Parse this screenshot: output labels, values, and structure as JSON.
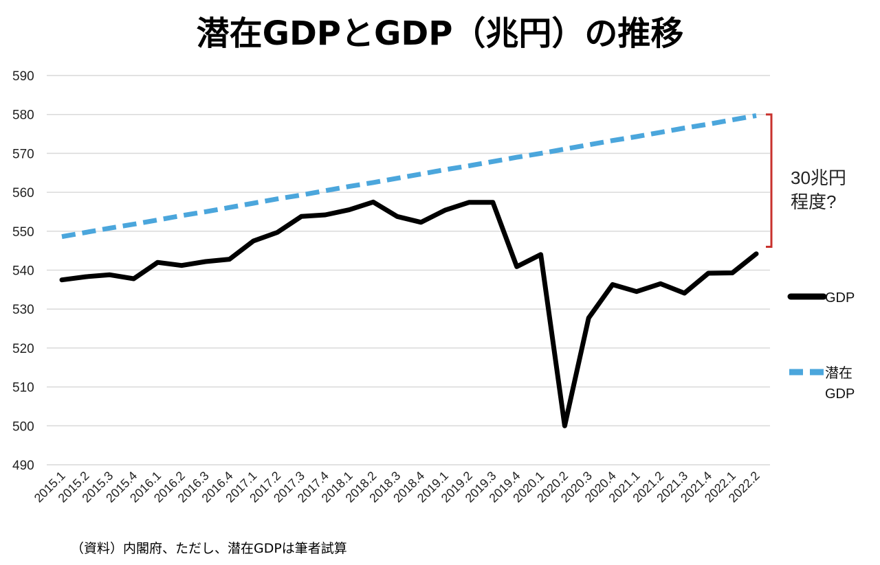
{
  "chart_data": {
    "type": "line",
    "title": "潜在GDPとGDP（兆円）の推移",
    "xlabel": "",
    "ylabel": "",
    "ylim": [
      490,
      590
    ],
    "yticks": [
      490,
      500,
      510,
      520,
      530,
      540,
      550,
      560,
      570,
      580,
      590
    ],
    "grid": true,
    "legend_position": "right",
    "categories": [
      "2015.1",
      "2015.2",
      "2015.3",
      "2015.4",
      "2016.1",
      "2016.2",
      "2016.3",
      "2016.4",
      "2017.1",
      "2017.2",
      "2017.3",
      "2017.4",
      "2018.1",
      "2018.2",
      "2018.3",
      "2018.4",
      "2019.1",
      "2019.2",
      "2019.3",
      "2019.4",
      "2020.1",
      "2020.2",
      "2020.3",
      "2020.4",
      "2021.1",
      "2021.2",
      "2021.3",
      "2021.4",
      "2022.1",
      "2022.2"
    ],
    "series": [
      {
        "name": "GDP",
        "style": "solid",
        "color": "#000000",
        "values": [
          537.5,
          538.3,
          538.8,
          537.8,
          542.0,
          541.2,
          542.2,
          542.8,
          547.5,
          549.7,
          553.8,
          554.2,
          555.5,
          557.5,
          553.8,
          552.3,
          555.4,
          557.4,
          557.4,
          540.9,
          544.0,
          500.0,
          527.7,
          536.3,
          534.5,
          536.5,
          534.1,
          539.2,
          539.3,
          544.2
        ]
      },
      {
        "name": "潜在GDP",
        "legend_lines": [
          "潜在",
          "GDP"
        ],
        "style": "dashed",
        "color": "#4ba6dc",
        "values": [
          548.6,
          549.7,
          550.8,
          551.8,
          552.9,
          554.0,
          555.0,
          556.1,
          557.2,
          558.3,
          559.3,
          560.4,
          561.5,
          562.5,
          563.6,
          564.7,
          565.8,
          566.8,
          567.9,
          569.0,
          570.0,
          571.1,
          572.2,
          573.3,
          574.3,
          575.4,
          576.5,
          577.5,
          578.6,
          579.7
        ]
      }
    ],
    "annotations": [
      {
        "text_lines": [
          "30兆円",
          "程度?"
        ],
        "bracket_from": 580,
        "bracket_to": 546,
        "color": "#c8322d"
      }
    ],
    "source": "（資料）内閣府、ただし、潜在GDPは筆者試算"
  }
}
